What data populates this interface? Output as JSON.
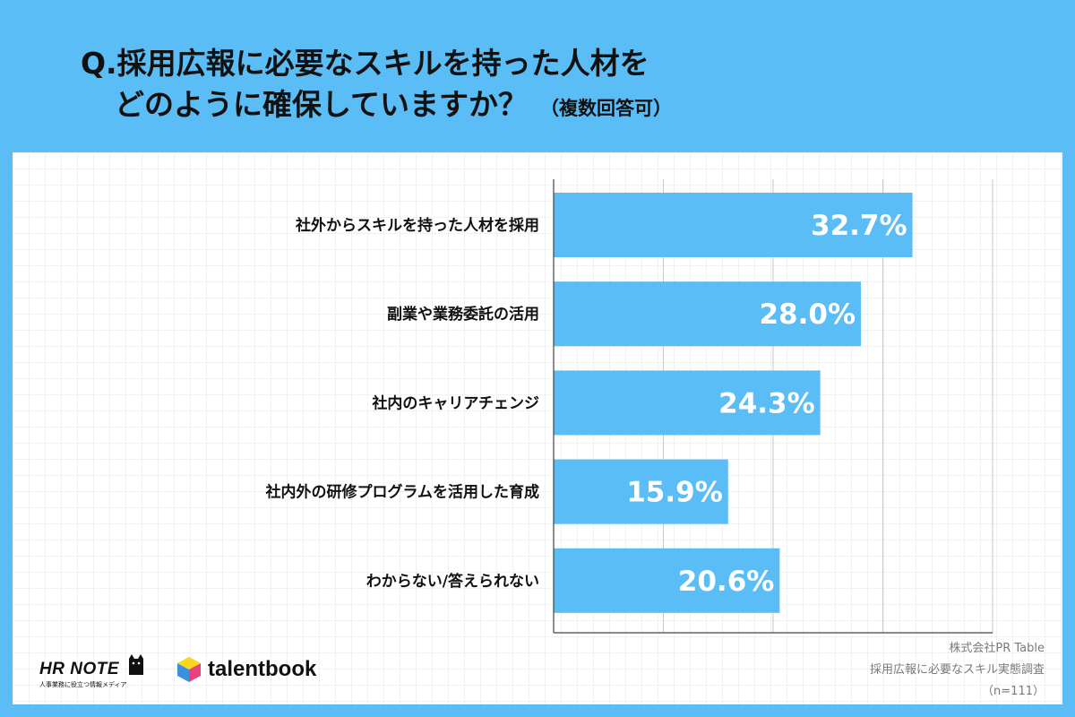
{
  "title": {
    "line1": "Q.採用広報に必要なスキルを持った人材を",
    "line2": "どのように確保していますか？",
    "note": "（複数回答可）"
  },
  "chart_data": {
    "type": "bar",
    "orientation": "horizontal",
    "categories": [
      "社外からスキルを持った人材を採用",
      "副業や業務委託の活用",
      "社内のキャリアチェンジ",
      "社内外の研修プログラムを活用した育成",
      "わからない/答えられない"
    ],
    "values": [
      32.7,
      28.0,
      24.3,
      15.9,
      20.6
    ],
    "value_labels": [
      "32.7%",
      "28.0%",
      "24.3%",
      "15.9%",
      "20.6%"
    ],
    "xlim": [
      0,
      40
    ],
    "grid": true,
    "bar_color": "#5bbdf5"
  },
  "logos": {
    "hrnote": {
      "name": "HR NOTE",
      "tagline": "人事業務に役立つ情報メディア"
    },
    "talentbook": {
      "name": "talentbook"
    }
  },
  "source": {
    "company": "株式会社PR Table",
    "survey": "採用広報に必要なスキル実態調査",
    "sample": "（n=111）"
  },
  "colors": {
    "background": "#5bbdf5",
    "panel": "#ffffff"
  }
}
